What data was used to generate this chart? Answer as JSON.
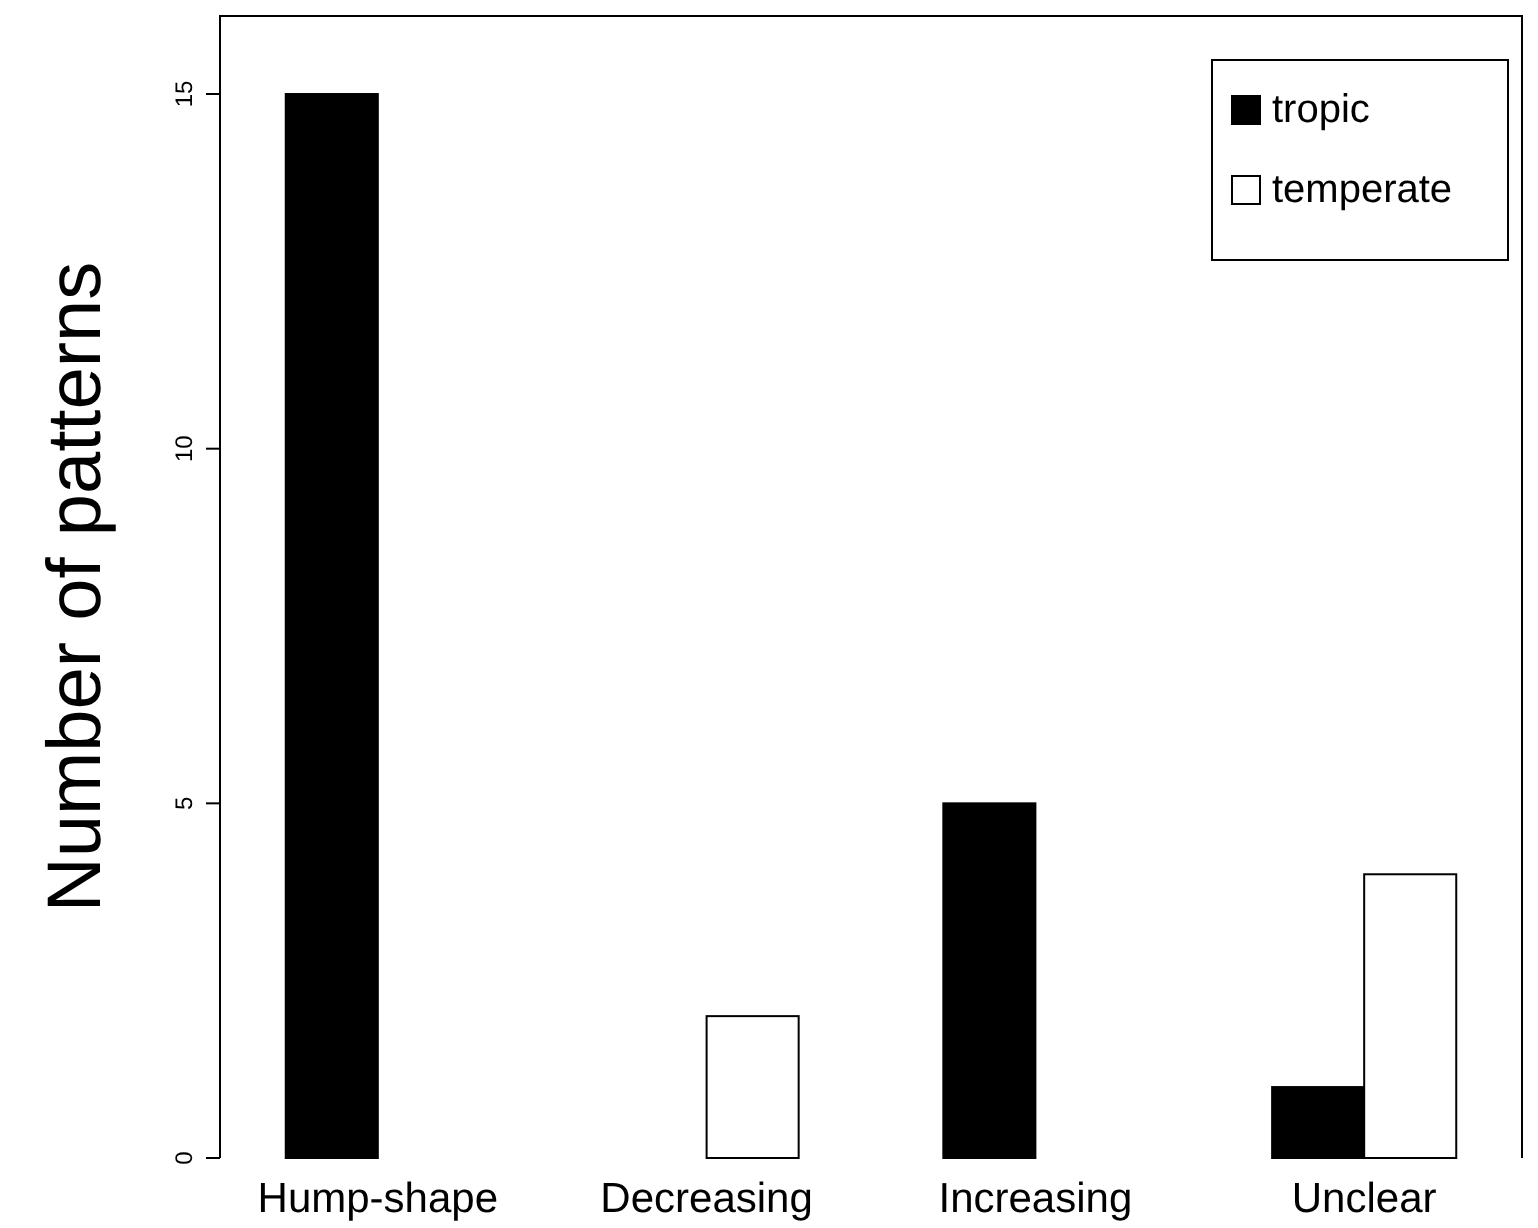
{
  "chart_data": {
    "type": "bar",
    "ylabel": "Number of patterns",
    "categories": [
      "Hump-shape",
      "Decreasing",
      "Increasing",
      "Unclear"
    ],
    "series": [
      {
        "name": "tropic",
        "color": "#000000",
        "values": [
          15,
          0,
          5,
          1
        ]
      },
      {
        "name": "temperate",
        "color": "#ffffff",
        "values": [
          0,
          2,
          0,
          4
        ]
      }
    ],
    "ylim": [
      0,
      16.1
    ],
    "yticks": [
      0,
      5,
      10,
      15
    ],
    "legend": "top right",
    "grid": false
  }
}
